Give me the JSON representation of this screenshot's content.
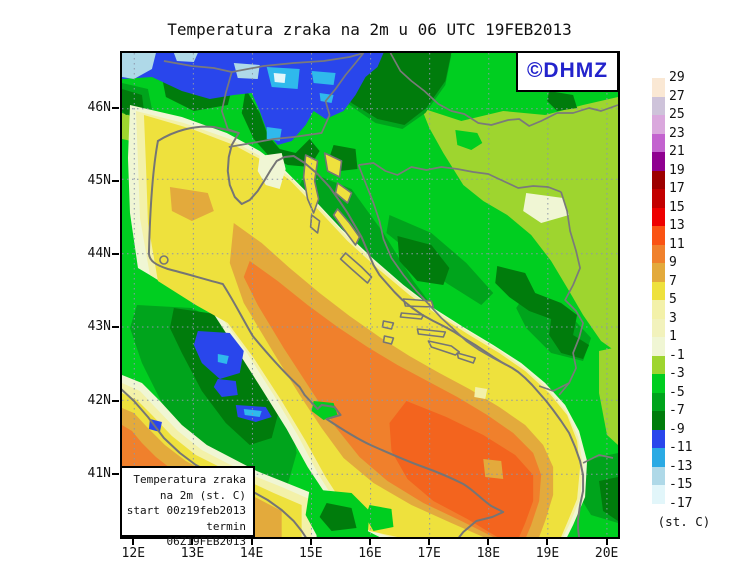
{
  "title": "Temperatura zraka na 2m u 06 UTC 19FEB2013",
  "watermark": "©DHMZ",
  "legend_box": {
    "lines": [
      "Temperatura zraka",
      "na 2m (st. C)",
      "start 00z19feb2013",
      "termin 06Z19FEB2013"
    ]
  },
  "axes": {
    "lat": [
      "46N",
      "45N",
      "44N",
      "43N",
      "42N",
      "41N"
    ],
    "lon": [
      "12E",
      "13E",
      "14E",
      "15E",
      "16E",
      "17E",
      "18E",
      "19E",
      "20E"
    ]
  },
  "colorbar": {
    "unit": "(st. C)",
    "labels": [
      "29",
      "27",
      "25",
      "23",
      "21",
      "19",
      "17",
      "15",
      "13",
      "11",
      "9",
      "7",
      "5",
      "3",
      "1",
      "-1",
      "-3",
      "-5",
      "-7",
      "-9",
      "-11",
      "-13",
      "-15",
      "-17"
    ],
    "colors": [
      "#FAE8D4",
      "#CEC3DA",
      "#DAA8DD",
      "#C363CF",
      "#8F0090",
      "#9D0000",
      "#C30000",
      "#EE0000",
      "#FA5313",
      "#F0812C",
      "#E3AA3C",
      "#EEE13D",
      "#F3F1A9",
      "#F2F2BC",
      "#F0F6D4",
      "#9ED52F",
      "#00CE20",
      "#00A41C",
      "#007C0C",
      "#2946EC",
      "#2AAAE4",
      "#AFD9E8",
      "#E2F6FA"
    ]
  },
  "map_colors": {
    "sea_warm_core": "#F3641E",
    "sea_orange": "#F0802C",
    "sea_gold": "#E3AA3C",
    "coast_yellow": "#EEE13D",
    "lowland_yellowgreen": "#9ED52F",
    "land_green": "#00CE20",
    "mountain_green": "#00A41C",
    "mountain_dark_green": "#007C0C",
    "cold_blue": "#2946EC",
    "cold_cyan": "#2FB9EC",
    "cold_pale": "#AFD9E8",
    "border_gray": "#7A7A7A",
    "grid_gray": "#8C96AA"
  }
}
